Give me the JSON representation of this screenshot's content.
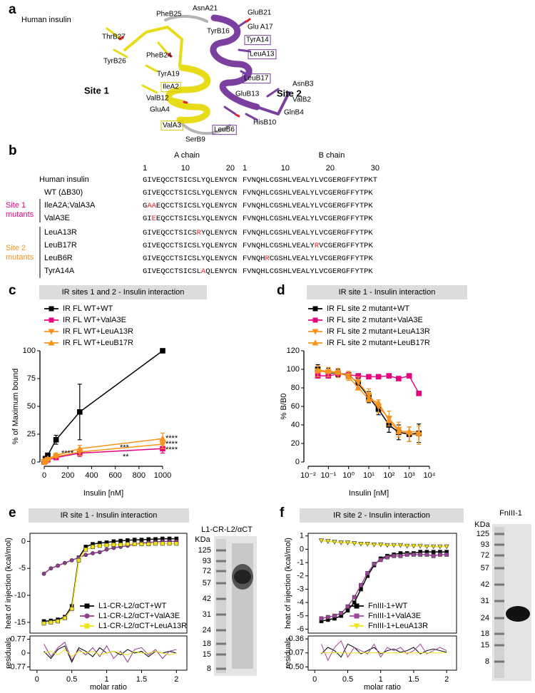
{
  "panel_labels": [
    "a",
    "b",
    "c",
    "d",
    "e",
    "f"
  ],
  "structure": {
    "title": "Human insulin",
    "site1": {
      "text": "Site 1",
      "color": "#e3d51c"
    },
    "site2": {
      "text": "Site 2",
      "color": "#7b3fa0"
    },
    "residues": [
      {
        "text": "PheB25",
        "color": "#000000"
      },
      {
        "text": "AsnA21",
        "color": "#000000"
      },
      {
        "text": "TyrB16",
        "color": "#000000"
      },
      {
        "text": "GluB21",
        "color": "#7b3fa0"
      },
      {
        "text": "Glu A17",
        "color": "#7b3fa0"
      },
      {
        "text": "TyrA14",
        "color": "#7b3fa0",
        "box": "#7b3fa0"
      },
      {
        "text": "ThrB27",
        "color": "#000000"
      },
      {
        "text": "PheB24",
        "color": "#000000"
      },
      {
        "text": "LeuA13",
        "color": "#7b3fa0",
        "box": "#7b3fa0"
      },
      {
        "text": "TyrB26",
        "color": "#000000"
      },
      {
        "text": "TyrA19",
        "color": "#000000"
      },
      {
        "text": "LeuB17",
        "color": "#7b3fa0",
        "box": "#7b3fa0"
      },
      {
        "text": "IleA2",
        "color": "#000000",
        "box": "#d8c800"
      },
      {
        "text": "AsnB3",
        "color": "#7b3fa0"
      },
      {
        "text": "GluB13",
        "color": "#7b3fa0"
      },
      {
        "text": "ValB12",
        "color": "#000000"
      },
      {
        "text": "ValB2",
        "color": "#7b3fa0"
      },
      {
        "text": "GluA4",
        "color": "#000000"
      },
      {
        "text": "GlnB4",
        "color": "#7b3fa0"
      },
      {
        "text": "HisB10",
        "color": "#7b3fa0"
      },
      {
        "text": "ValA3",
        "color": "#000000",
        "box": "#d8c800"
      },
      {
        "text": "LeuB6",
        "color": "#7b3fa0",
        "box": "#7b3fa0"
      },
      {
        "text": "SerB9",
        "color": "#000000"
      }
    ]
  },
  "alignment": {
    "a_chain": "A chain",
    "b_chain": "B chain",
    "a_ruler": [
      1,
      10,
      20
    ],
    "b_ruler": [
      1,
      10,
      20,
      30
    ],
    "groups": [
      {
        "lines": [
          "Site 1",
          "mutants"
        ],
        "color": "#e6007e"
      },
      {
        "lines": [
          "Site 2",
          "mutants"
        ],
        "color": "#f7941d"
      }
    ],
    "rows": [
      {
        "name": "Human insulin",
        "a": [
          "GIVEQCCTSICSLYQLENYCN"
        ],
        "b": [
          "FVNQHLCGSHLVEALYLVCGERGFFYTPKT"
        ]
      },
      {
        "name": "WT (ΔB30)",
        "a": [
          "GIVEQCCTSICSLYQLENYCN"
        ],
        "b": [
          "FVNQHLCGSHLVEALYLVCGERGFFYTPK"
        ]
      },
      {
        "name": "IleA2A;ValA3A",
        "a": [
          "G",
          {
            "text": "AA",
            "color": "#e8212a"
          },
          "EQCCTSICSLYQLENYCN"
        ],
        "b": [
          "FVNQHLCGSHLVEALYLVCGERGFFYTPK"
        ]
      },
      {
        "name": "ValA3E",
        "a": [
          "GI",
          {
            "text": "E",
            "color": "#e8212a"
          },
          "EQCCTSICSLYQLENYCN"
        ],
        "b": [
          "FVNQHLCGSHLVEALYLVCGERGFFYTPK"
        ]
      },
      {
        "name": "LeuA13R",
        "a": [
          "GIVEQCCTSICS",
          {
            "text": "R",
            "color": "#e8212a"
          },
          "YQLENYCN"
        ],
        "b": [
          "FVNQHLCGSHLVEALYLVCGERGFFYTPK"
        ]
      },
      {
        "name": "LeuB17R",
        "a": [
          "GIVEQCCTSICSLYQLENYCN"
        ],
        "b": [
          "FVNQHLCGSHLVEALY",
          {
            "text": "R",
            "color": "#e8212a"
          },
          "VCGERGFFYTPK"
        ]
      },
      {
        "name": "LeuB6R",
        "a": [
          "GIVEQCCTSICSLYQLENYCN"
        ],
        "b": [
          "FVNQH",
          {
            "text": "R",
            "color": "#e8212a"
          },
          "CGSHLVEALYLVCGERGFFYTPK"
        ]
      },
      {
        "name": "TyrA14A",
        "a": [
          "GIVEQCCTSICSL",
          {
            "text": "A",
            "color": "#e8212a"
          },
          "QLENYCN"
        ],
        "b": [
          "FVNQHLCGSHLVEALYLVCGERGFFYTPK"
        ]
      }
    ]
  },
  "chart_data": [
    {
      "type": "line",
      "title": "IR sites 1 and 2 - Insulin interaction",
      "xlabel": "Insulin [nM]",
      "ylabel": "% of Maximum bound",
      "x": [
        0,
        10,
        30,
        100,
        300,
        1000
      ],
      "xlim": [
        0,
        1000
      ],
      "xticks": [
        0,
        200,
        400,
        600,
        800,
        1000
      ],
      "ylim": [
        0,
        100
      ],
      "yticks": [
        0,
        25,
        50,
        75,
        100
      ],
      "legend": "above",
      "series": [
        {
          "name": "IR FL WT+WT",
          "color": "#000000",
          "marker": "square",
          "values": [
            0,
            3,
            6,
            20,
            45,
            100
          ],
          "errors": [
            null,
            1,
            2,
            4,
            25,
            null
          ]
        },
        {
          "name": "IR FL WT+ValA3E",
          "color": "#e6007e",
          "marker": "square",
          "values": [
            0,
            1,
            2,
            4,
            8,
            12
          ],
          "errors": [
            null,
            null,
            1,
            1,
            3,
            4
          ]
        },
        {
          "name": "IR FL WT+LeuA13R",
          "color": "#f7941d",
          "marker": "triangle-down",
          "values": [
            0,
            1,
            2,
            5,
            9,
            16
          ],
          "errors": [
            null,
            null,
            1,
            1,
            3,
            4
          ]
        },
        {
          "name": "IR FL WT+LeuB17R",
          "color": "#f7941d",
          "marker": "triangle",
          "values": [
            0,
            1,
            3,
            6,
            12,
            21
          ],
          "errors": [
            null,
            null,
            1,
            2,
            3,
            5
          ]
        }
      ],
      "annotations": [
        "****",
        "****",
        "****",
        "****",
        "***",
        "**"
      ]
    },
    {
      "type": "line",
      "title": "IR site 1 - Insulin interaction",
      "xlabel": "Insulin [nM]",
      "ylabel": "% B/B0",
      "x": [
        0.03,
        0.1,
        0.3,
        1,
        3,
        10,
        30,
        100,
        300,
        1000,
        3000
      ],
      "logx": true,
      "xlim": [
        0.01,
        10000
      ],
      "xticks": [
        {
          "value": 0.01,
          "label": "10⁻²"
        },
        {
          "value": 0.1,
          "label": "10⁻¹"
        },
        {
          "value": 1,
          "label": "10⁰"
        },
        {
          "value": 10,
          "label": "10¹"
        },
        {
          "value": 100,
          "label": "10²"
        },
        {
          "value": 1000,
          "label": "10³"
        },
        {
          "value": 10000,
          "label": "10⁴"
        }
      ],
      "ylim": [
        0,
        120
      ],
      "yticks": [
        0,
        20,
        40,
        60,
        80,
        100,
        120
      ],
      "legend": "above",
      "series": [
        {
          "name": "IR FL site 2 mutant+WT",
          "color": "#000000",
          "marker": "square",
          "values": [
            100,
            96,
            96,
            94,
            85,
            70,
            57,
            40,
            32,
            30,
            31
          ],
          "errors": [
            5,
            5,
            4,
            4,
            5,
            6,
            6,
            8,
            8,
            8,
            10
          ]
        },
        {
          "name": "IR FL site 2 mutant+ValA3E",
          "color": "#e6007e",
          "marker": "square",
          "values": [
            93,
            93,
            95,
            94,
            93,
            92,
            92,
            93,
            90,
            93,
            74
          ]
        },
        {
          "name": "IR FL site 2 mutant+LeuA13R",
          "color": "#f7941d",
          "marker": "triangle-down",
          "values": [
            98,
            97,
            96,
            93,
            86,
            72,
            60,
            47,
            35,
            30,
            29
          ],
          "errors": [
            6,
            5,
            5,
            5,
            6,
            7,
            7,
            8,
            8,
            8,
            10
          ]
        },
        {
          "name": "IR FL site 2 mutant+LeuB17R",
          "color": "#f7941d",
          "marker": "triangle",
          "values": [
            99,
            98,
            97,
            92,
            80,
            68,
            64,
            45,
            33,
            33,
            32
          ]
        }
      ]
    },
    {
      "type": "line",
      "title": "IR site 1 - Insulin interaction",
      "xlabel": "molar ratio",
      "ylabel": "heat of injection (kcal/mol)",
      "x": [
        0.1,
        0.2,
        0.3,
        0.4,
        0.5,
        0.6,
        0.7,
        0.8,
        0.9,
        1.0,
        1.1,
        1.2,
        1.3,
        1.4,
        1.5,
        1.6,
        1.7,
        1.8,
        1.9,
        2.0
      ],
      "xlim": [
        -0.1,
        2.15
      ],
      "xticks": [
        0,
        0.5,
        1,
        1.5,
        2
      ],
      "ylim": [
        -17,
        1.5
      ],
      "yticks": [
        0,
        -5,
        -10,
        -15
      ],
      "legend": "lower right",
      "series": [
        {
          "name": "L1-CR-L2/αCT+WT",
          "color": "#000000",
          "marker": "square",
          "values": [
            -14.8,
            -14.7,
            -14.5,
            -14,
            -12,
            -3,
            -1,
            -0.5,
            -0.3,
            -0.2,
            0,
            0.1,
            0.2,
            0.3,
            0.3,
            0.4,
            0.4,
            0.5,
            0.5,
            0.5
          ]
        },
        {
          "name": "L1-CR-L2/αCT+ValA3E",
          "color": "#8e3a8e",
          "marker": "circle",
          "values": [
            -6,
            -5,
            -4.5,
            -4,
            -3.5,
            -3,
            -2.5,
            -2.2,
            -2,
            -1.5,
            -1.2,
            -1,
            -0.8,
            -0.5,
            -0.3,
            -0.2,
            -0.1,
            0,
            0,
            0
          ]
        },
        {
          "name": "L1-CR-L2/αCT+LeuA13R",
          "color": "#f2e21a",
          "marker": "square",
          "values": [
            -15.2,
            -15,
            -14.8,
            -14.2,
            -12.5,
            -3.5,
            -1.5,
            -1,
            -0.8,
            -0.7,
            -0.6,
            -0.6,
            -0.5,
            -0.5,
            -0.5,
            -0.5,
            -0.4,
            -0.4,
            -0.4,
            -0.4
          ]
        }
      ],
      "residuals": {
        "ylabel": "residuals",
        "ylim": [
          -0.95,
          0.95
        ],
        "yticks": [
          0.77,
          0,
          -0.77
        ],
        "series": [
          {
            "color": "#000000",
            "values": [
              0.1,
              -0.3,
              0.2,
              0.4,
              -0.5,
              0.3,
              0.1,
              -0.2,
              0.3,
              0,
              0.1,
              -0.1,
              0.2,
              0,
              0.1,
              -0.2,
              0.1,
              0,
              0.1,
              0
            ]
          },
          {
            "color": "#8e3a8e",
            "values": [
              0.5,
              -0.2,
              0.3,
              0.6,
              -0.4,
              0.2,
              -0.1,
              0.3,
              -0.2,
              0.4,
              -0.3,
              0.1,
              -0.5,
              0.2,
              0.3,
              -0.1,
              0.2,
              -0.3,
              0.1,
              0.2
            ]
          },
          {
            "color": "#f2e21a",
            "values": [
              0,
              0.1,
              -0.1,
              0.2,
              -0.2,
              0.1,
              0,
              0.1,
              -0.1,
              0,
              0.1,
              0,
              -0.1,
              0.1,
              0,
              0,
              0.1,
              0,
              -0.1,
              0
            ]
          }
        ]
      },
      "gel": {
        "title": "L1-CR-L2/αCT",
        "unit": "KDa",
        "markers": [
          125,
          93,
          72,
          57,
          42,
          31,
          24,
          18,
          15,
          8
        ]
      }
    },
    {
      "type": "line",
      "title": "IR site 2 - Insulin interaction",
      "xlabel": "molar ratio",
      "ylabel": "heat of injection (kcal/mol)",
      "x": [
        0.1,
        0.2,
        0.3,
        0.4,
        0.5,
        0.6,
        0.7,
        0.8,
        0.9,
        1.0,
        1.1,
        1.2,
        1.3,
        1.4,
        1.5,
        1.6,
        1.7,
        1.8,
        1.9,
        2.0
      ],
      "xlim": [
        -0.1,
        2.15
      ],
      "xticks": [
        0,
        0.5,
        1,
        1.5,
        2
      ],
      "ylim": [
        -6.3,
        1.2
      ],
      "yticks": [
        1,
        0,
        -1,
        -2,
        -3,
        -4,
        -5,
        -6
      ],
      "legend": "lower right",
      "series": [
        {
          "name": "FnIII-1+WT",
          "color": "#000000",
          "marker": "square",
          "values": [
            -5.4,
            -5.3,
            -5.2,
            -5,
            -4.6,
            -4,
            -3,
            -2,
            -1.2,
            -0.7,
            -0.5,
            -0.4,
            -0.3,
            -0.3,
            -0.3,
            -0.2,
            -0.2,
            -0.2,
            -0.2,
            -0.2
          ]
        },
        {
          "name": "FnIII-1+ValA3E",
          "color": "#a0449b",
          "marker": "square",
          "values": [
            -5.2,
            -5.1,
            -5,
            -4.8,
            -4.3,
            -3.6,
            -2.7,
            -1.8,
            -1.1,
            -0.8,
            -0.6,
            -0.5,
            -0.5,
            -0.4,
            -0.4,
            -0.4,
            -0.4,
            -0.5,
            -0.4,
            -0.4
          ]
        },
        {
          "name": "FnIII-1+LeuA13R",
          "color": "#f2e21a",
          "marker": "triangle-down",
          "values": [
            0.65,
            0.6,
            0.55,
            0.5,
            0.5,
            0.45,
            0.4,
            0.4,
            0.35,
            0.35,
            0.3,
            0.3,
            0.3,
            0.25,
            0.25,
            0.25,
            0.2,
            0.2,
            0.2,
            0.2
          ]
        }
      ],
      "residuals": {
        "ylabel": "residuals",
        "ylim": [
          -0.6,
          0.45
        ],
        "yticks": [
          0.36,
          -0.07,
          {
            "value": -0.5,
            "label": "-0.50"
          }
        ],
        "series": [
          {
            "color": "#000000",
            "values": [
              -0.1,
              0.1,
              0,
              -0.2,
              0.2,
              0.1,
              -0.1,
              0,
              0.1,
              -0.1,
              0,
              0.05,
              -0.05,
              0,
              0.1,
              -0.1,
              0,
              0.05,
              0,
              -0.05
            ]
          },
          {
            "color": "#a0449b",
            "values": [
              0.2,
              -0.3,
              0.1,
              0.3,
              -0.2,
              0.1,
              0,
              -0.1,
              0.2,
              -0.2,
              0.1,
              0,
              0.1,
              -0.1,
              0,
              0.2,
              -0.1,
              0,
              0.1,
              0
            ]
          },
          {
            "color": "#f2e21a",
            "values": [
              -0.07,
              -0.07,
              -0.06,
              -0.07,
              -0.08,
              -0.07,
              -0.07,
              -0.06,
              -0.07,
              -0.07,
              -0.07,
              -0.07,
              -0.07,
              -0.07,
              -0.07,
              -0.07,
              -0.07,
              -0.07,
              -0.07,
              -0.07
            ]
          }
        ]
      },
      "gel": {
        "title": "FnIII-1",
        "unit": "KDa",
        "markers": [
          125,
          93,
          72,
          57,
          42,
          31,
          24,
          18,
          15,
          8
        ]
      }
    }
  ]
}
